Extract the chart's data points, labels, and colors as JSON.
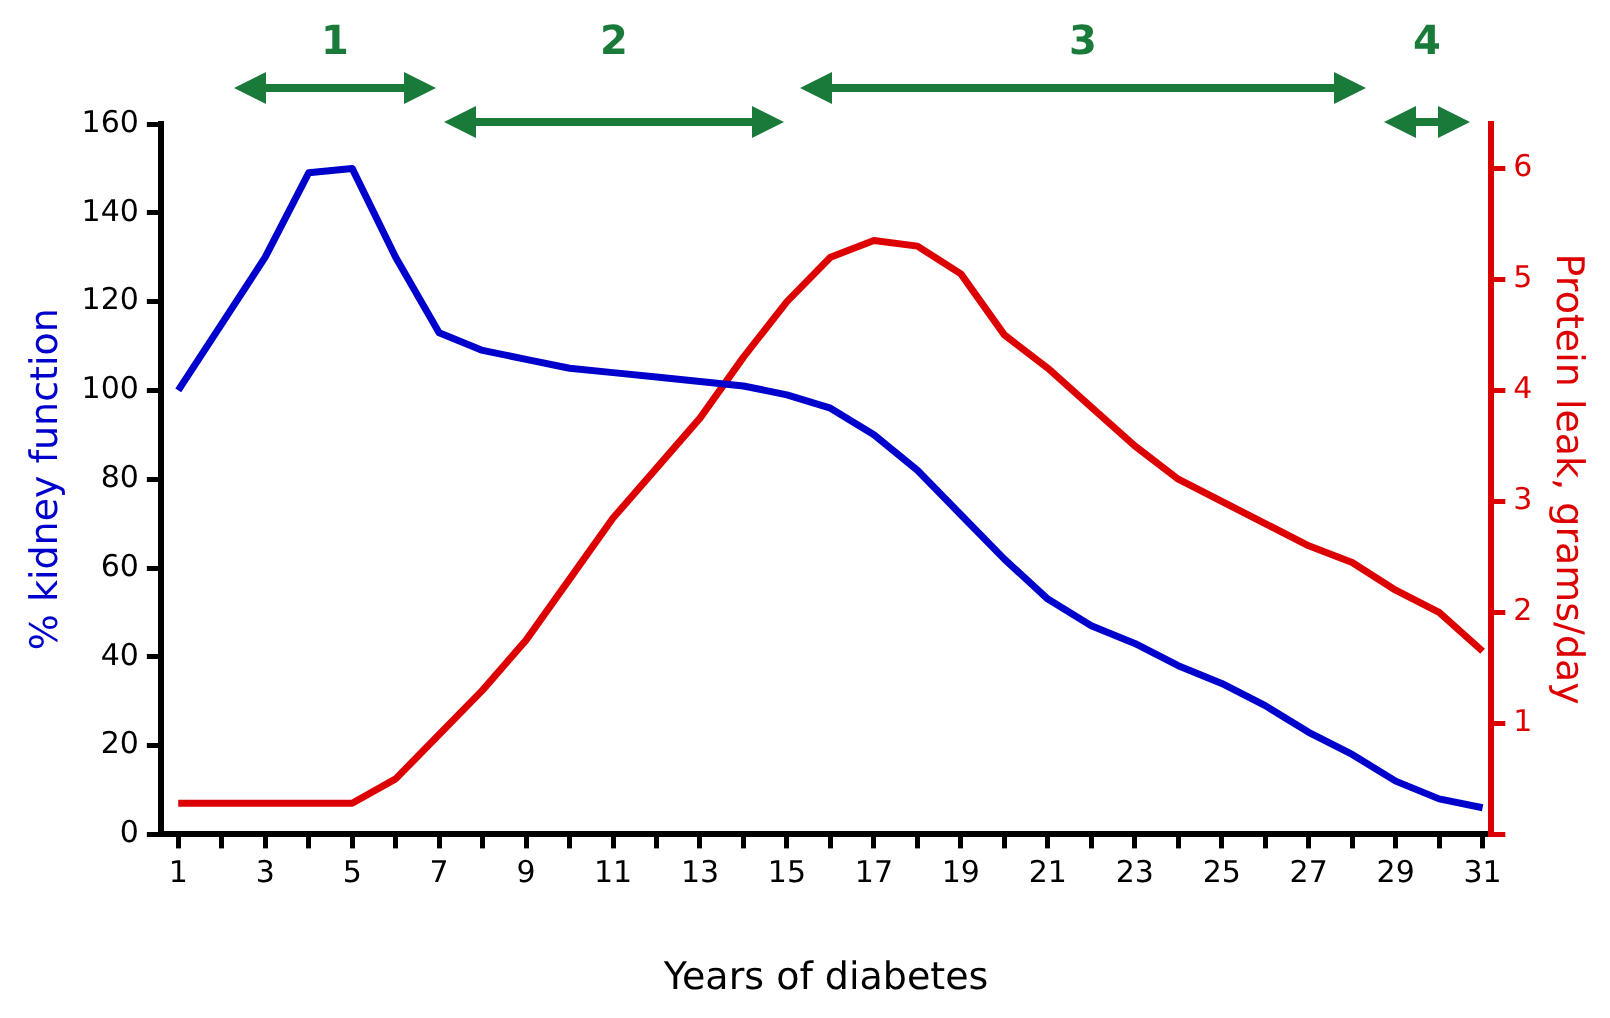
{
  "chart_data": {
    "type": "line",
    "xlabel": "Years of diabetes",
    "ylabel": "% kidney function",
    "y2label": "Protein leak, grams/day",
    "x": [
      1,
      2,
      3,
      4,
      5,
      6,
      7,
      8,
      9,
      10,
      11,
      12,
      13,
      14,
      15,
      16,
      17,
      18,
      19,
      20,
      21,
      22,
      23,
      24,
      25,
      26,
      27,
      28,
      29,
      30,
      31
    ],
    "series": [
      {
        "color": "#0000cc",
        "values": [
          100,
          115,
          130,
          149,
          150,
          130,
          113,
          109,
          107,
          105,
          104,
          103,
          102,
          101,
          99,
          96,
          90,
          82,
          72,
          62,
          53,
          47,
          43,
          38,
          34,
          29,
          23,
          18,
          12,
          8,
          6
        ]
      },
      {
        "color": "#dd0000",
        "axis": "y2",
        "values": [
          0.28,
          0.28,
          0.28,
          0.28,
          0.28,
          0.5,
          0.9,
          1.3,
          1.75,
          2.3,
          2.85,
          3.3,
          3.75,
          4.3,
          4.8,
          5.2,
          5.35,
          5.3,
          5.05,
          4.5,
          4.2,
          3.85,
          3.5,
          3.2,
          3.0,
          2.8,
          2.6,
          2.45,
          2.2,
          2.0,
          1.65
        ]
      }
    ],
    "xlim": [
      0.6,
      31.2
    ],
    "xticks": [
      1,
      {
        "value": 2,
        "label": null
      },
      3,
      {
        "value": 4,
        "label": null
      },
      5,
      {
        "value": 6,
        "label": null
      },
      7,
      {
        "value": 8,
        "label": null
      },
      9,
      {
        "value": 10,
        "label": null
      },
      11,
      {
        "value": 12,
        "label": null
      },
      13,
      {
        "value": 14,
        "label": null
      },
      15,
      {
        "value": 16,
        "label": null
      },
      17,
      {
        "value": 18,
        "label": null
      },
      19,
      {
        "value": 20,
        "label": null
      },
      21,
      {
        "value": 22,
        "label": null
      },
      23,
      {
        "value": 24,
        "label": null
      },
      25,
      {
        "value": 26,
        "label": null
      },
      27,
      {
        "value": 28,
        "label": null
      },
      29,
      {
        "value": 30,
        "label": null
      },
      31
    ],
    "ylim": [
      0,
      160
    ],
    "yticks": [
      0,
      20,
      40,
      60,
      80,
      100,
      120,
      140,
      160
    ],
    "y2lim": [
      0,
      6.4
    ],
    "y2ticks": [
      {
        "value": 0,
        "label": null
      },
      1,
      2,
      3,
      4,
      5,
      6
    ],
    "annotations": [
      "1",
      "2",
      "3",
      "4"
    ],
    "grid": false,
    "legend": false,
    "marker": "none",
    "line_style": "solid"
  }
}
